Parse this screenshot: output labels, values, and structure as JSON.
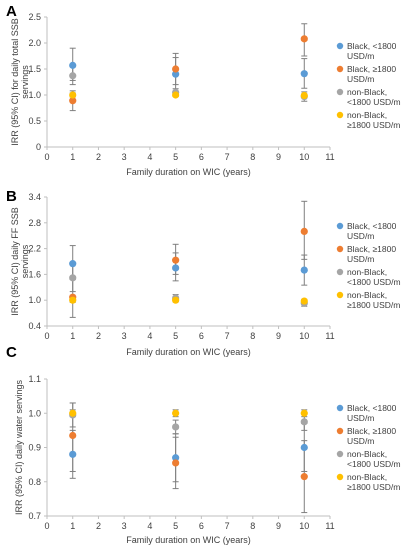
{
  "colors": {
    "Black, <1800 USD/m": "#5b9bd5",
    "Black, ≥1800 USD/m": "#ed7d31",
    "non-Black, <1800 USD/m": "#a5a5a5",
    "non-Black, ≥1800 USD/m": "#ffc000",
    "error_bar": "#7f7f7f",
    "axis": "#bfbfbf"
  },
  "chart_data": [
    {
      "panel": "A",
      "type": "scatter",
      "ylabel": [
        "IRR (95% CI) for daily total SSB",
        "servings"
      ],
      "xlabel": "Family duration on WIC (years)",
      "xlim": [
        0,
        11
      ],
      "xticks": [
        "0",
        "1",
        "2",
        "3",
        "4",
        "5",
        "6",
        "7",
        "8",
        "9",
        "10",
        "11"
      ],
      "ylim": [
        0,
        2.5
      ],
      "yticks": [
        "0",
        "0.5",
        "1.0",
        "1.5",
        "2.0",
        "2.5"
      ],
      "ytick_values": [
        0,
        0.5,
        1.0,
        1.5,
        2.0,
        2.5
      ],
      "legend_position": "right",
      "series": [
        {
          "name": [
            "Black, <1800",
            "USD/m"
          ],
          "color_key": "Black, <1800 USD/m",
          "x": [
            1,
            5,
            10
          ],
          "y": [
            1.57,
            1.4,
            1.41
          ],
          "lo": [
            1.28,
            1.05,
            1.13
          ],
          "hi": [
            1.9,
            1.8,
            1.7
          ]
        },
        {
          "name": [
            "Black, ≥1800",
            "USD/m"
          ],
          "color_key": "Black, ≥1800 USD/m",
          "x": [
            1,
            5,
            10
          ],
          "y": [
            0.89,
            1.5,
            2.08
          ],
          "lo": [
            0.7,
            1.2,
            1.75
          ],
          "hi": [
            1.08,
            1.72,
            2.37
          ]
        },
        {
          "name": [
            "non-Black,",
            "<1800 USD/m"
          ],
          "color_key": "non-Black, <1800 USD/m",
          "x": [
            1,
            5,
            10
          ],
          "y": [
            1.37,
            1.05,
            0.97
          ],
          "lo": [
            1.2,
            0.98,
            0.88
          ],
          "hi": [
            1.55,
            1.12,
            1.06
          ]
        },
        {
          "name": [
            "non-Black,",
            "≥1800 USD/m"
          ],
          "color_key": "non-Black, ≥1800 USD/m",
          "x": [
            1,
            5,
            10
          ],
          "y": [
            1.0,
            1.0,
            0.99
          ],
          "lo": [
            0.96,
            0.97,
            0.96
          ],
          "hi": [
            1.04,
            1.03,
            1.02
          ]
        }
      ]
    },
    {
      "panel": "B",
      "type": "scatter",
      "ylabel": [
        "IRR (95% CI) daily FF SSB",
        "servings"
      ],
      "xlabel": "Family duration on WIC (years)",
      "xlim": [
        0,
        11
      ],
      "xticks": [
        "0",
        "1",
        "2",
        "3",
        "4",
        "5",
        "6",
        "7",
        "8",
        "9",
        "10",
        "11"
      ],
      "ylim": [
        0.4,
        3.4
      ],
      "yticks": [
        "0.4",
        "1.0",
        "1.6",
        "2.2",
        "2.8",
        "3.4"
      ],
      "ytick_values": [
        0.4,
        1.0,
        1.6,
        2.2,
        2.8,
        3.4
      ],
      "legend_position": "right",
      "series": [
        {
          "name": [
            "Black, <1800",
            "USD/m"
          ],
          "color_key": "Black, <1800 USD/m",
          "x": [
            1,
            5,
            10
          ],
          "y": [
            1.85,
            1.75,
            1.7
          ],
          "lo": [
            1.48,
            1.45,
            1.35
          ],
          "hi": [
            2.27,
            2.1,
            2.05
          ]
        },
        {
          "name": [
            "Black, ≥1800",
            "USD/m"
          ],
          "color_key": "Black, ≥1800 USD/m",
          "x": [
            1,
            5,
            10
          ],
          "y": [
            1.07,
            1.93,
            2.6
          ],
          "lo": [
            0.6,
            1.6,
            1.95
          ],
          "hi": [
            1.55,
            2.3,
            3.3
          ]
        },
        {
          "name": [
            "non-Black,",
            "<1800 USD/m"
          ],
          "color_key": "non-Black, <1800 USD/m",
          "x": [
            1,
            5,
            10
          ],
          "y": [
            1.52,
            1.05,
            0.93
          ],
          "lo": [
            1.2,
            0.97,
            0.86
          ],
          "hi": [
            1.85,
            1.13,
            1.0
          ]
        },
        {
          "name": [
            "non-Black,",
            "≥1800 USD/m"
          ],
          "color_key": "non-Black, ≥1800 USD/m",
          "x": [
            1,
            5,
            10
          ],
          "y": [
            1.0,
            1.0,
            0.98
          ],
          "lo": [
            0.95,
            0.96,
            0.94
          ],
          "hi": [
            1.05,
            1.04,
            1.02
          ]
        }
      ]
    },
    {
      "panel": "C",
      "type": "scatter",
      "ylabel": [
        "IRR (95% CI) daily water servings"
      ],
      "xlabel": "Family duration on WIC (years)",
      "xlim": [
        0,
        11
      ],
      "xticks": [
        "0",
        "1",
        "2",
        "3",
        "4",
        "5",
        "6",
        "7",
        "8",
        "9",
        "10",
        "11"
      ],
      "ylim": [
        0.7,
        1.1
      ],
      "yticks": [
        "0.7",
        "0.8",
        "0.9",
        "1.0",
        "1.1"
      ],
      "ytick_values": [
        0.7,
        0.8,
        0.9,
        1.0,
        1.1
      ],
      "legend_position": "right",
      "series": [
        {
          "name": [
            "Black, <1800",
            "USD/m"
          ],
          "color_key": "Black, <1800 USD/m",
          "x": [
            1,
            5,
            10
          ],
          "y": [
            0.88,
            0.87,
            0.9
          ],
          "lo": [
            0.81,
            0.8,
            0.83
          ],
          "hi": [
            0.95,
            0.94,
            0.97
          ]
        },
        {
          "name": [
            "Black, ≥1800",
            "USD/m"
          ],
          "color_key": "Black, ≥1800 USD/m",
          "x": [
            1,
            5,
            10
          ],
          "y": [
            0.935,
            0.855,
            0.815
          ],
          "lo": [
            0.83,
            0.78,
            0.71
          ],
          "hi": [
            1.03,
            0.93,
            0.92
          ]
        },
        {
          "name": [
            "non-Black,",
            "<1800 USD/m"
          ],
          "color_key": "non-Black, <1800 USD/m",
          "x": [
            1,
            5,
            10
          ],
          "y": [
            0.995,
            0.96,
            0.975
          ],
          "lo": [
            0.96,
            0.94,
            0.95
          ],
          "hi": [
            1.03,
            0.98,
            1.0
          ]
        },
        {
          "name": [
            "non-Black,",
            "≥1800 USD/m"
          ],
          "color_key": "non-Black, ≥1800 USD/m",
          "x": [
            1,
            5,
            10
          ],
          "y": [
            1.0,
            1.0,
            1.0
          ],
          "lo": [
            0.99,
            0.99,
            0.99
          ],
          "hi": [
            1.01,
            1.01,
            1.01
          ]
        }
      ]
    }
  ]
}
